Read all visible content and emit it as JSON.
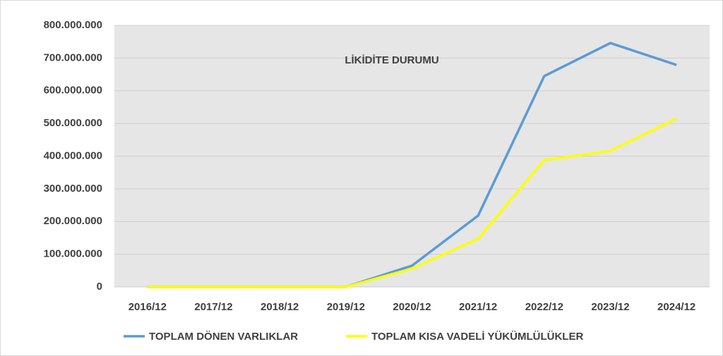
{
  "chart_data": {
    "type": "line",
    "title": "LİKİDİTE DURUMU",
    "categories": [
      "2016/12",
      "2017/12",
      "2018/12",
      "2019/12",
      "2020/12",
      "2021/12",
      "2022/12",
      "2023/12",
      "2024/12"
    ],
    "series": [
      {
        "name": "TOPLAM DÖNEN VARLIKLAR",
        "color": "#5b9bd5",
        "values": [
          0,
          0,
          0,
          0,
          65000000,
          218000000,
          645000000,
          746000000,
          679000000
        ]
      },
      {
        "name": "TOPLAM KISA VADELİ YÜKÜMLÜLÜKLER",
        "color": "#ffff00",
        "values": [
          0,
          0,
          0,
          0,
          56000000,
          147000000,
          388000000,
          416000000,
          515000000
        ]
      }
    ],
    "ylim": [
      0,
      800000000
    ],
    "yticks": [
      0,
      {
        "value": 100000000,
        "label": "100.000.000"
      },
      {
        "value": 200000000,
        "label": "200.000.000"
      },
      {
        "value": 300000000,
        "label": "300.000.000"
      },
      {
        "value": 400000000,
        "label": "400.000.000"
      },
      {
        "value": 500000000,
        "label": "500.000.000"
      },
      {
        "value": 600000000,
        "label": "600.000.000"
      },
      {
        "value": 700000000,
        "label": "700.000.000"
      },
      {
        "value": 800000000,
        "label": "800.000.000"
      }
    ],
    "grid": true,
    "legend": "bottom"
  }
}
